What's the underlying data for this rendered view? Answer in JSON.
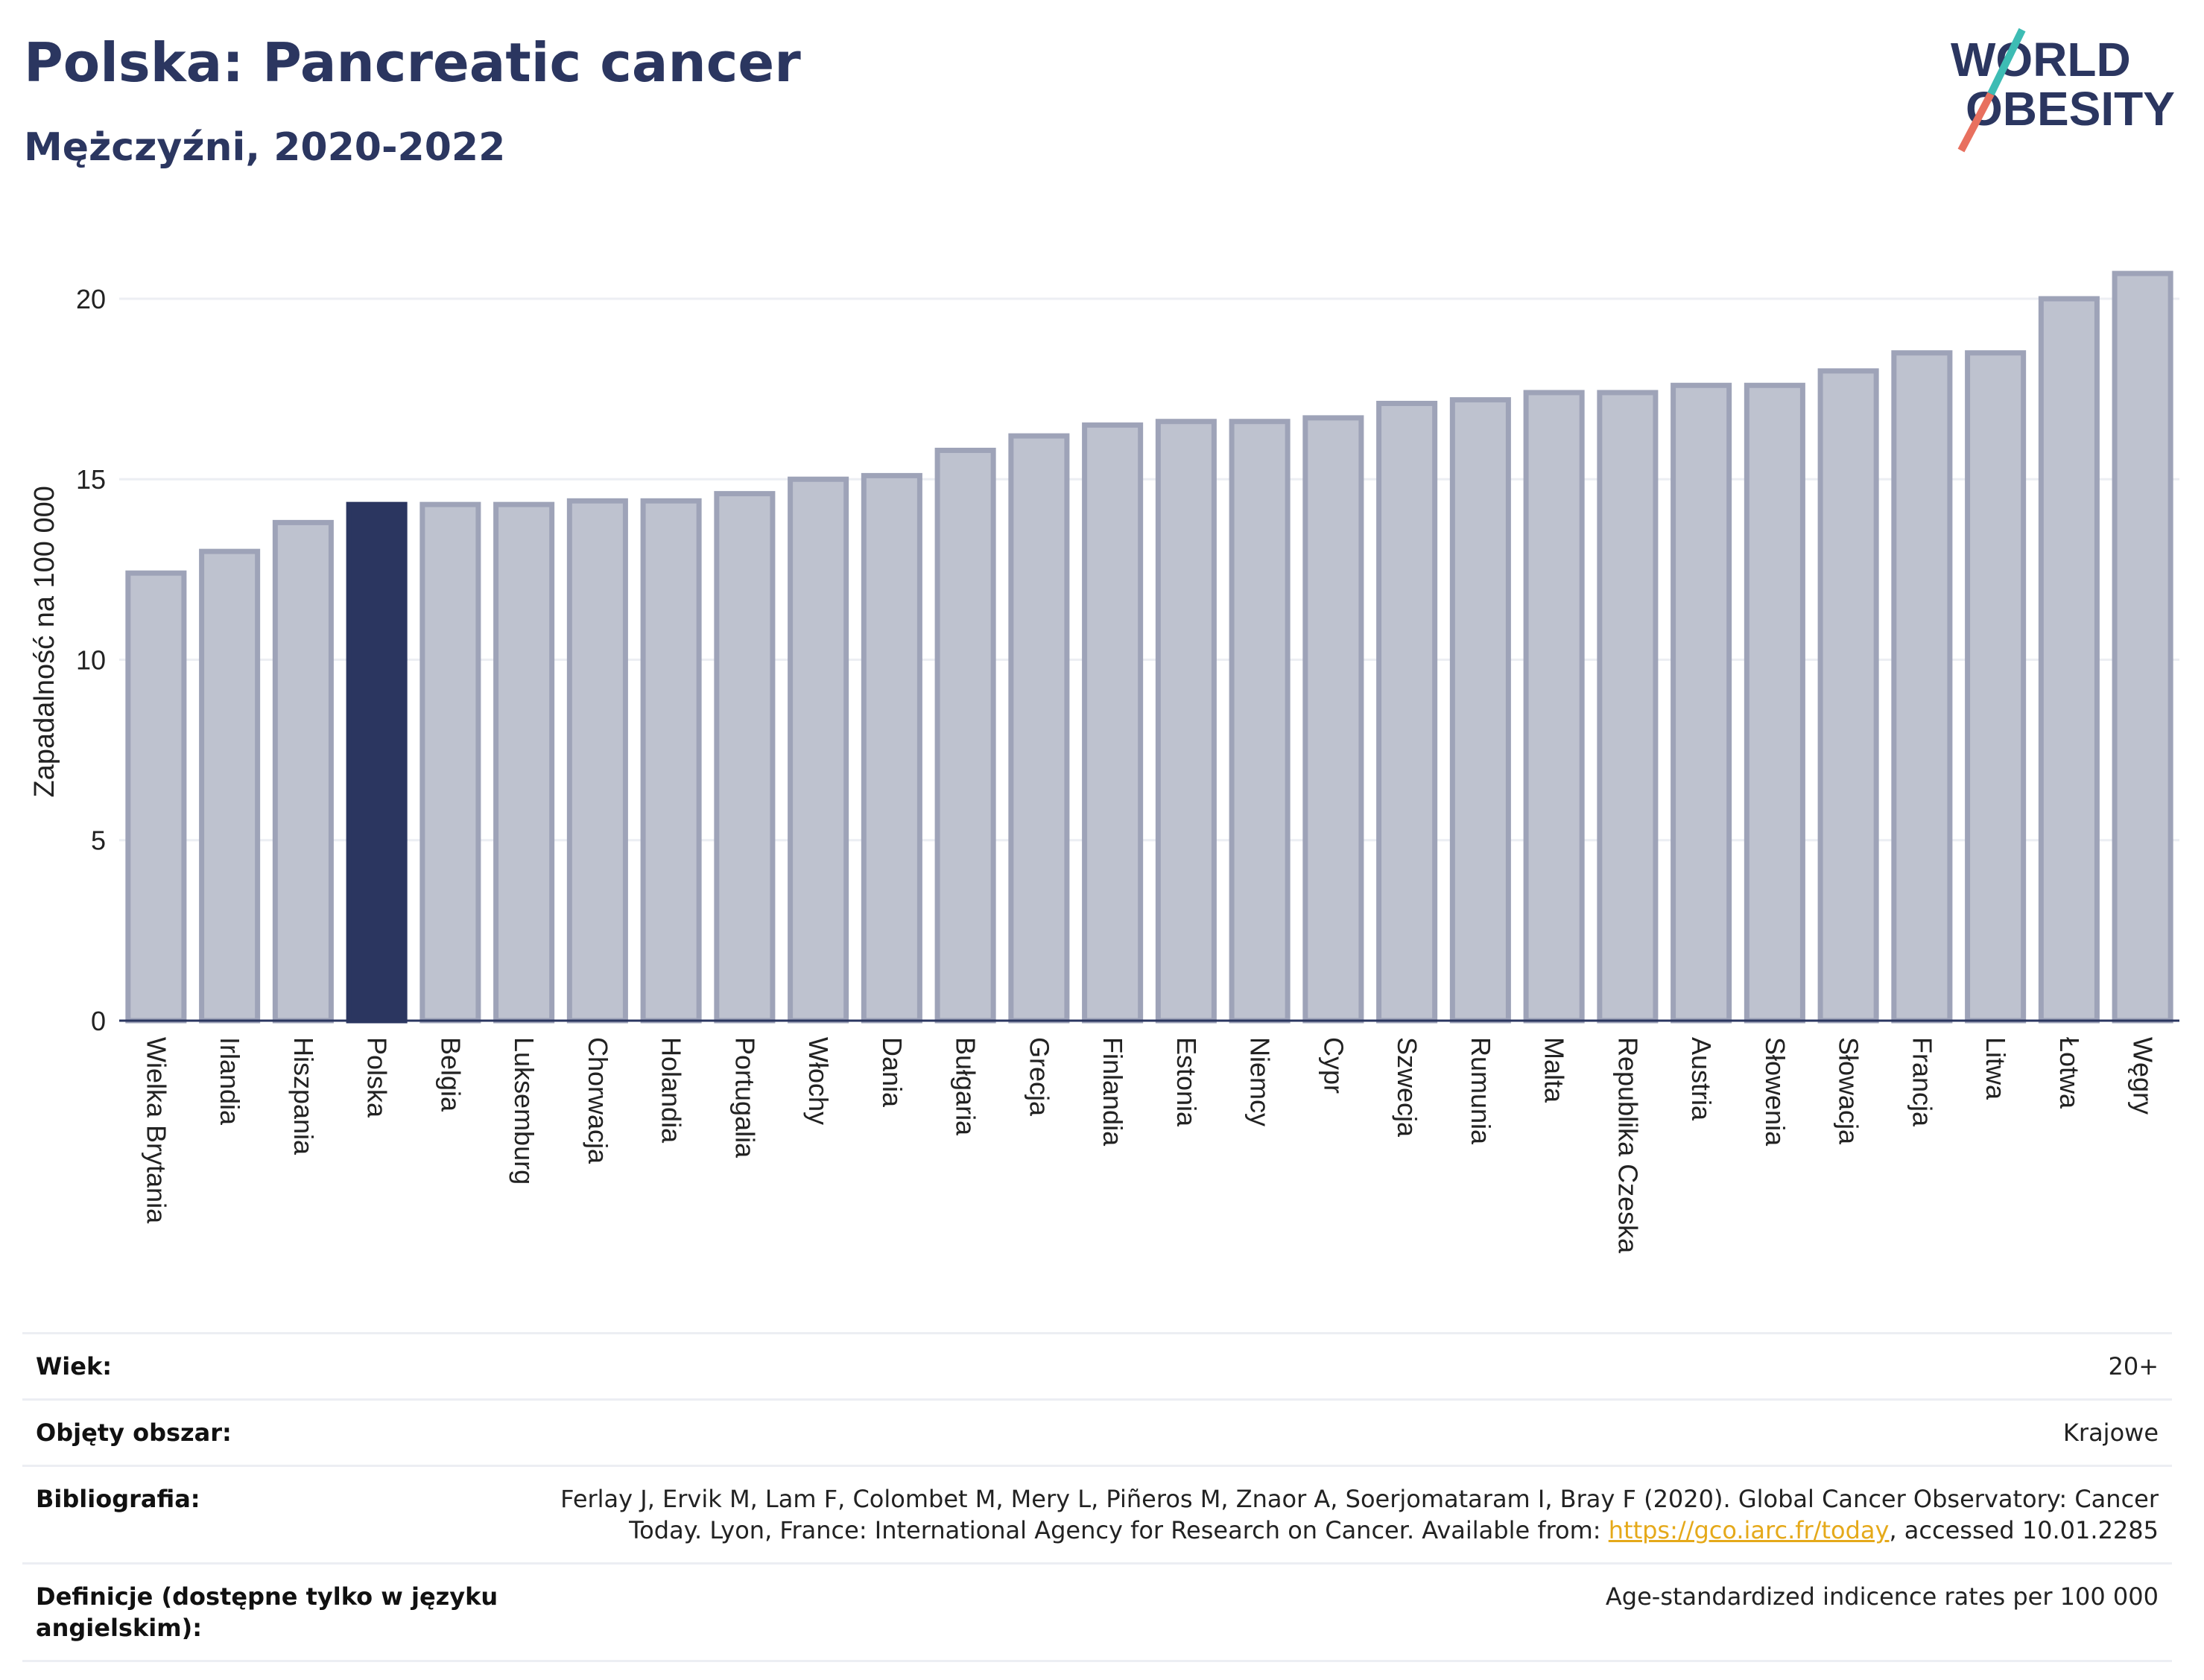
{
  "header": {
    "title": "Polska: Pancreatic cancer",
    "subtitle": "Mężczyźni, 2020-2022"
  },
  "logo": {
    "line1": "WORLD",
    "line2": "OBESITY"
  },
  "colors": {
    "highlight": "#2b3660",
    "bar_fill": "#bec2cf",
    "bar_stroke": "#9ea3b8",
    "accent_teal": "#3dbcb4",
    "accent_coral": "#e8705f",
    "link": "#e5a91a"
  },
  "chart_data": {
    "type": "bar",
    "title": "",
    "xlabel": "",
    "ylabel": "Zapadalność na 100 000",
    "ylim": [
      0,
      21.3
    ],
    "yticks": [
      0,
      5,
      10,
      15,
      20
    ],
    "grid": true,
    "highlight": "Polska",
    "categories": [
      "Wielka Brytania",
      "Irlandia",
      "Hiszpania",
      "Polska",
      "Belgia",
      "Luksemburg",
      "Chorwacja",
      "Holandia",
      "Portugalia",
      "Włochy",
      "Dania",
      "Bułgaria",
      "Grecja",
      "Finlandia",
      "Estonia",
      "Niemcy",
      "Cypr",
      "Szwecja",
      "Rumunia",
      "Malta",
      "Republika Czeska",
      "Austria",
      "Słowenia",
      "Słowacja",
      "Francja",
      "Litwa",
      "Łotwa",
      "Węgry"
    ],
    "values": [
      12.4,
      13.0,
      13.8,
      14.3,
      14.3,
      14.3,
      14.4,
      14.4,
      14.6,
      15.0,
      15.1,
      15.8,
      16.2,
      16.5,
      16.6,
      16.6,
      16.7,
      17.1,
      17.2,
      17.4,
      17.4,
      17.6,
      17.6,
      18.0,
      18.5,
      18.5,
      20.0,
      20.7
    ]
  },
  "meta": [
    {
      "label": "Wiek:",
      "value": "20+"
    },
    {
      "label": "Objęty obszar:",
      "value": "Krajowe"
    },
    {
      "label": "Bibliografia:",
      "value_pre": "Ferlay J, Ervik M, Lam F, Colombet M, Mery L, Piñeros M, Znaor A, Soerjomataram I, Bray F (2020). Global Cancer Observatory: Cancer Today. Lyon, France: International Agency for Research on Cancer. Available from: ",
      "link": "https://gco.iarc.fr/today",
      "value_post": ", accessed 10.01.2285"
    },
    {
      "label": "Definicje (dostępne tylko w języku angielskim):",
      "value": "Age-standardized indicence rates per 100 000"
    }
  ]
}
